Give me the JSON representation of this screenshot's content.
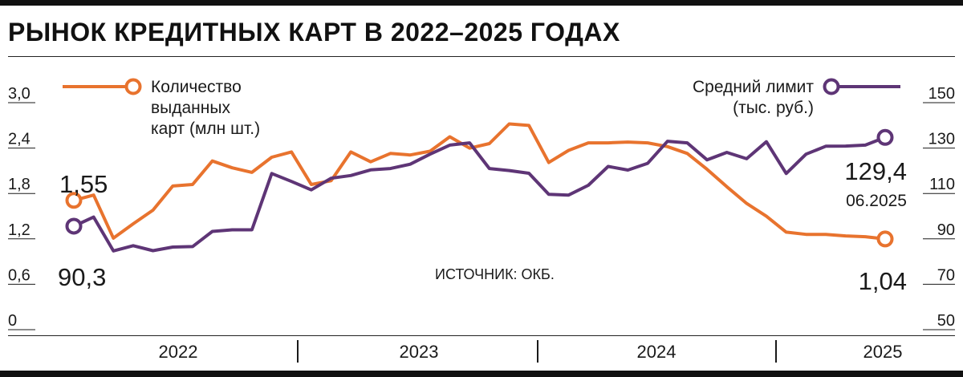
{
  "title": "РЫНОК КРЕДИТНЫХ КАРТ В 2022–2025 ГОДАХ",
  "source": "ИСТОЧНИК: ОКБ.",
  "colors": {
    "orange": "#E8732E",
    "purple": "#5E3576",
    "ink": "#1a1a1a",
    "rule": "#222222"
  },
  "chart_data": {
    "type": "line",
    "title": "РЫНОК КРЕДИТНЫХ КАРТ В 2022–2025 ГОДАХ",
    "left_axis": {
      "ticks": [
        "3,0",
        "2,4",
        "1,8",
        "1,2",
        "0,6",
        "0"
      ],
      "ylim": [
        0,
        3.0
      ]
    },
    "right_axis": {
      "ticks": [
        "150",
        "130",
        "110",
        "90",
        "70",
        "50"
      ],
      "ylim": [
        50,
        150
      ]
    },
    "x_categories": [
      "2022",
      "2023",
      "2024",
      "2025"
    ],
    "x_range": [
      "2022-01",
      "2025-06"
    ],
    "series": [
      {
        "name": "Количество выданных карт (млн шт.)",
        "legend_lines": [
          "Количество",
          "выданных",
          "карт (млн шт.)"
        ],
        "axis": "left",
        "color": "#E8732E",
        "x": [
          "2022-01",
          "2022-02",
          "2022-03",
          "2022-04",
          "2022-05",
          "2022-06",
          "2022-07",
          "2022-08",
          "2022-09",
          "2022-10",
          "2022-11",
          "2022-12",
          "2023-01",
          "2023-02",
          "2023-03",
          "2023-04",
          "2023-05",
          "2023-06",
          "2023-07",
          "2023-08",
          "2023-09",
          "2023-10",
          "2023-11",
          "2023-12",
          "2024-01",
          "2024-02",
          "2024-03",
          "2024-04",
          "2024-05",
          "2024-06",
          "2024-07",
          "2024-08",
          "2024-09",
          "2024-10",
          "2024-11",
          "2024-12",
          "2025-01",
          "2025-02",
          "2025-03",
          "2025-04",
          "2025-05",
          "2025-06"
        ],
        "values": [
          1.55,
          1.62,
          1.05,
          1.24,
          1.42,
          1.74,
          1.76,
          2.07,
          1.98,
          1.92,
          2.12,
          2.19,
          1.76,
          1.81,
          2.19,
          2.06,
          2.17,
          2.15,
          2.2,
          2.39,
          2.24,
          2.3,
          2.56,
          2.54,
          2.05,
          2.21,
          2.31,
          2.31,
          2.32,
          2.31,
          2.26,
          2.17,
          1.96,
          1.73,
          1.51,
          1.34,
          1.13,
          1.1,
          1.1,
          1.08,
          1.07,
          1.04
        ]
      },
      {
        "name": "Средний лимит (тыс. руб.)",
        "legend_lines": [
          "Средний лимит",
          "(тыс. руб.)"
        ],
        "axis": "right",
        "color": "#5E3576",
        "x": [
          "2022-01",
          "2022-02",
          "2022-03",
          "2022-04",
          "2022-05",
          "2022-06",
          "2022-07",
          "2022-08",
          "2022-09",
          "2022-10",
          "2022-11",
          "2022-12",
          "2023-01",
          "2023-02",
          "2023-03",
          "2023-04",
          "2023-05",
          "2023-06",
          "2023-07",
          "2023-08",
          "2023-09",
          "2023-10",
          "2023-11",
          "2023-12",
          "2024-01",
          "2024-02",
          "2024-03",
          "2024-04",
          "2024-05",
          "2024-06",
          "2024-07",
          "2024-08",
          "2024-09",
          "2024-10",
          "2024-11",
          "2024-12",
          "2025-01",
          "2025-02",
          "2025-03",
          "2025-04",
          "2025-05",
          "2025-06"
        ],
        "values": [
          90.3,
          94.3,
          79.4,
          81.7,
          79.5,
          81.1,
          81.3,
          88.0,
          88.7,
          88.7,
          113.5,
          110.0,
          106.3,
          111.4,
          112.6,
          115.1,
          115.7,
          117.6,
          122.0,
          126.0,
          127.0,
          115.7,
          114.8,
          113.6,
          104.3,
          104.0,
          108.3,
          116.6,
          115.0,
          118.0,
          127.7,
          127.0,
          119.5,
          122.8,
          120.0,
          127.5,
          113.5,
          122.0,
          125.5,
          125.6,
          126.0,
          129.4
        ]
      }
    ],
    "annotations": {
      "orange_start": "1,55",
      "purple_start": "90,3",
      "purple_end": "129,4",
      "purple_end_date": "06.2025",
      "orange_end": "1,04"
    },
    "grid": false,
    "legend_placement": "top"
  }
}
